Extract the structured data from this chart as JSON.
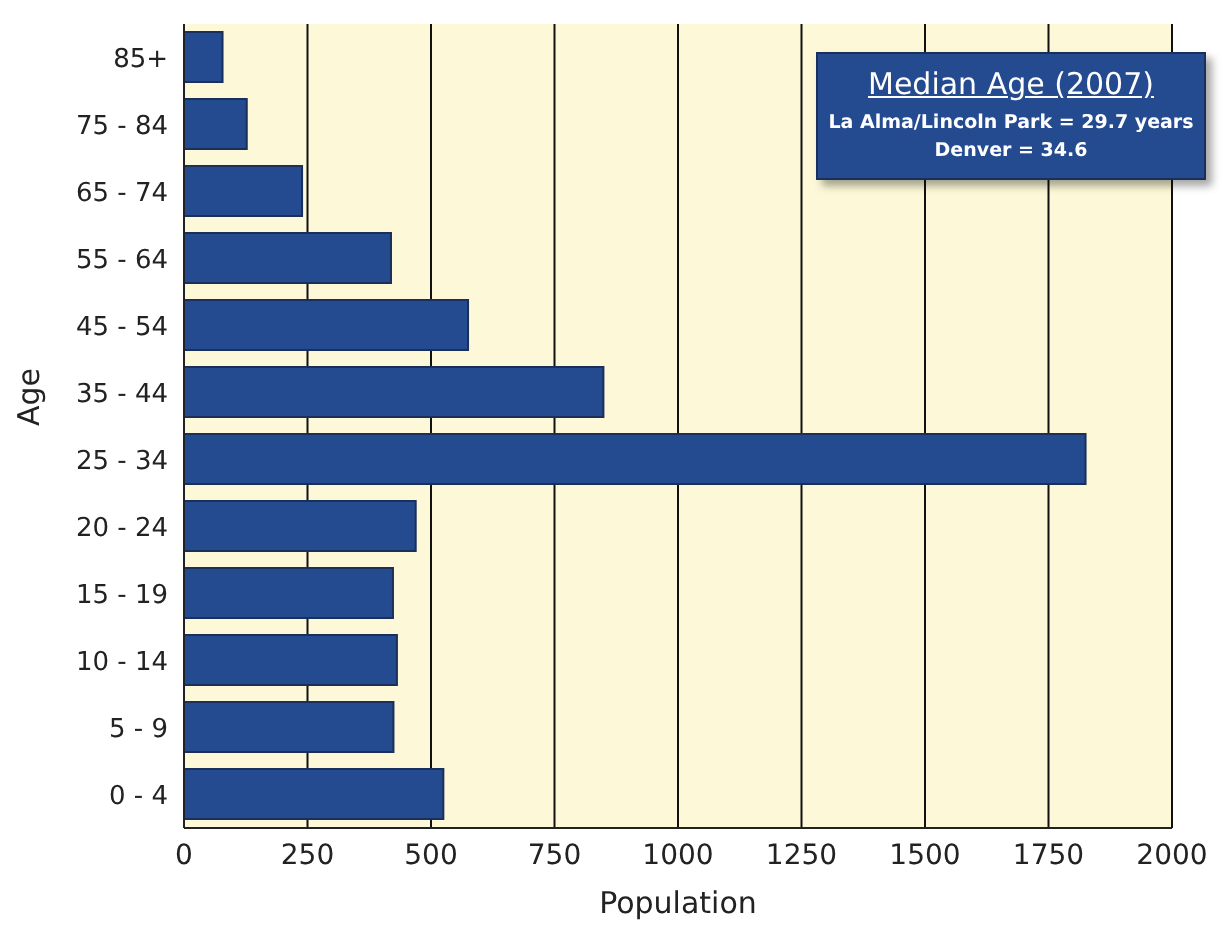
{
  "chart_data": {
    "type": "bar",
    "orientation": "horizontal",
    "categories": [
      "85+",
      "75 - 84",
      "65 - 74",
      "55 - 64",
      "45 - 54",
      "35 - 44",
      "25 - 34",
      "20 - 24",
      "15 - 19",
      "10 - 14",
      "5 - 9",
      "0 - 4"
    ],
    "values": [
      78,
      127,
      239,
      419,
      575,
      849,
      1825,
      469,
      423,
      431,
      424,
      525
    ],
    "color": "#244a8f",
    "xlabel": "Population",
    "ylabel": "Age",
    "xlim": [
      0,
      2000
    ],
    "xticks": [
      0,
      250,
      500,
      750,
      1000,
      1250,
      1500,
      1750,
      2000
    ],
    "grid": "x",
    "legend": false,
    "annotations": [
      "Median Age (2007)",
      "La Alma/Lincoln Park = 29.7 years",
      "Denver = 34.6"
    ]
  }
}
